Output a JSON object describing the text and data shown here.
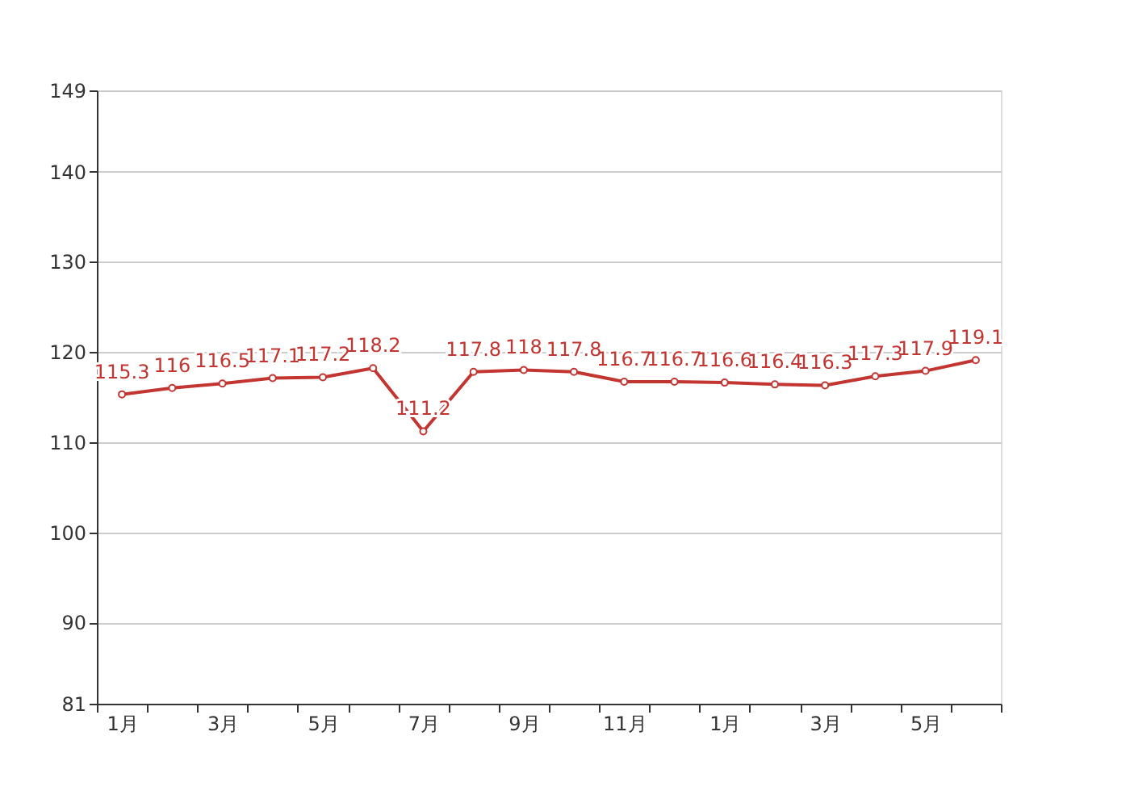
{
  "chart_data": {
    "type": "line",
    "categories": [
      "1月",
      null,
      "3月",
      null,
      "5月",
      null,
      "7月",
      null,
      "9月",
      null,
      "11月",
      null,
      "1月",
      null,
      "3月",
      null,
      "5月",
      null
    ],
    "series": [
      {
        "color": "#c23531",
        "values": [
          115.3,
          116,
          116.5,
          117.1,
          117.2,
          118.2,
          111.2,
          117.8,
          118,
          117.8,
          116.7,
          116.7,
          116.6,
          116.4,
          116.3,
          117.3,
          117.9,
          119.1
        ]
      }
    ],
    "ylim": [
      81,
      149
    ],
    "yticks": [
      81,
      90,
      100,
      110,
      120,
      130,
      140,
      149
    ],
    "grid": "y",
    "data_labels": true,
    "marker": "circle",
    "line_style": "solid"
  }
}
